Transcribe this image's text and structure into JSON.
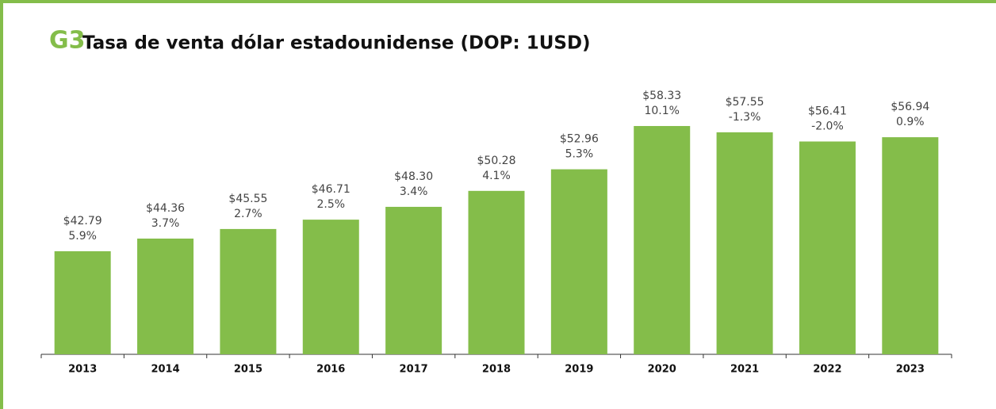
{
  "chart_data": {
    "type": "bar",
    "title_prefix": "G3",
    "title": "Tasa de venta dólar estadounidense (DOP: 1USD)",
    "categories": [
      "2013",
      "2014",
      "2015",
      "2016",
      "2017",
      "2018",
      "2019",
      "2020",
      "2021",
      "2022",
      "2023"
    ],
    "values": [
      42.79,
      44.36,
      45.55,
      46.71,
      48.3,
      50.28,
      52.96,
      58.33,
      57.55,
      56.41,
      56.94
    ],
    "value_labels": [
      "$42.79",
      "$44.36",
      "$45.55",
      "$46.71",
      "$48.30",
      "$50.28",
      "$52.96",
      "$58.33",
      "$57.55",
      "$56.41",
      "$56.94"
    ],
    "changes": [
      5.9,
      3.7,
      2.7,
      2.5,
      3.4,
      4.1,
      5.3,
      10.1,
      -1.3,
      -2.0,
      0.9
    ],
    "change_labels": [
      "5.9%",
      "3.7%",
      "2.7%",
      "2.5%",
      "3.4%",
      "4.1%",
      "5.3%",
      "10.1%",
      "-1.3%",
      "-2.0%",
      "0.9%"
    ],
    "color": "#84bd4a",
    "ylim": [
      30,
      60
    ]
  }
}
